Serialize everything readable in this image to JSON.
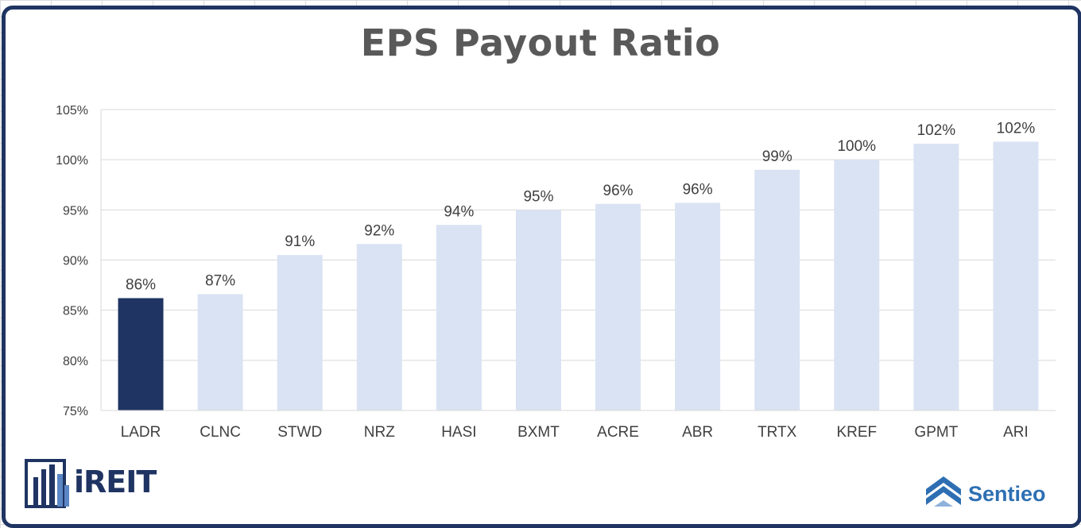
{
  "chart_data": {
    "type": "bar",
    "title": "EPS Payout Ratio",
    "categories": [
      "LADR",
      "CLNC",
      "STWD",
      "NRZ",
      "HASI",
      "BXMT",
      "ACRE",
      "ABR",
      "TRTX",
      "KREF",
      "GPMT",
      "ARI"
    ],
    "values": [
      86.2,
      86.6,
      90.5,
      91.6,
      93.5,
      95.0,
      95.6,
      95.7,
      99.0,
      100.0,
      101.6,
      101.8
    ],
    "data_labels": [
      "86%",
      "87%",
      "91%",
      "92%",
      "94%",
      "95%",
      "96%",
      "96%",
      "99%",
      "100%",
      "102%",
      "102%"
    ],
    "ylim": [
      75,
      105
    ],
    "yticks": [
      75,
      80,
      85,
      90,
      95,
      100,
      105
    ],
    "ytick_labels": [
      "75%",
      "80%",
      "85%",
      "90%",
      "95%",
      "100%",
      "105%"
    ],
    "highlight_index": 0,
    "colors": {
      "highlight": "#1f3462",
      "default": "#dae3f3"
    },
    "grid": true,
    "legend": "none"
  },
  "logos": {
    "ireit": "iREIT",
    "sentieo": "Sentieo"
  }
}
